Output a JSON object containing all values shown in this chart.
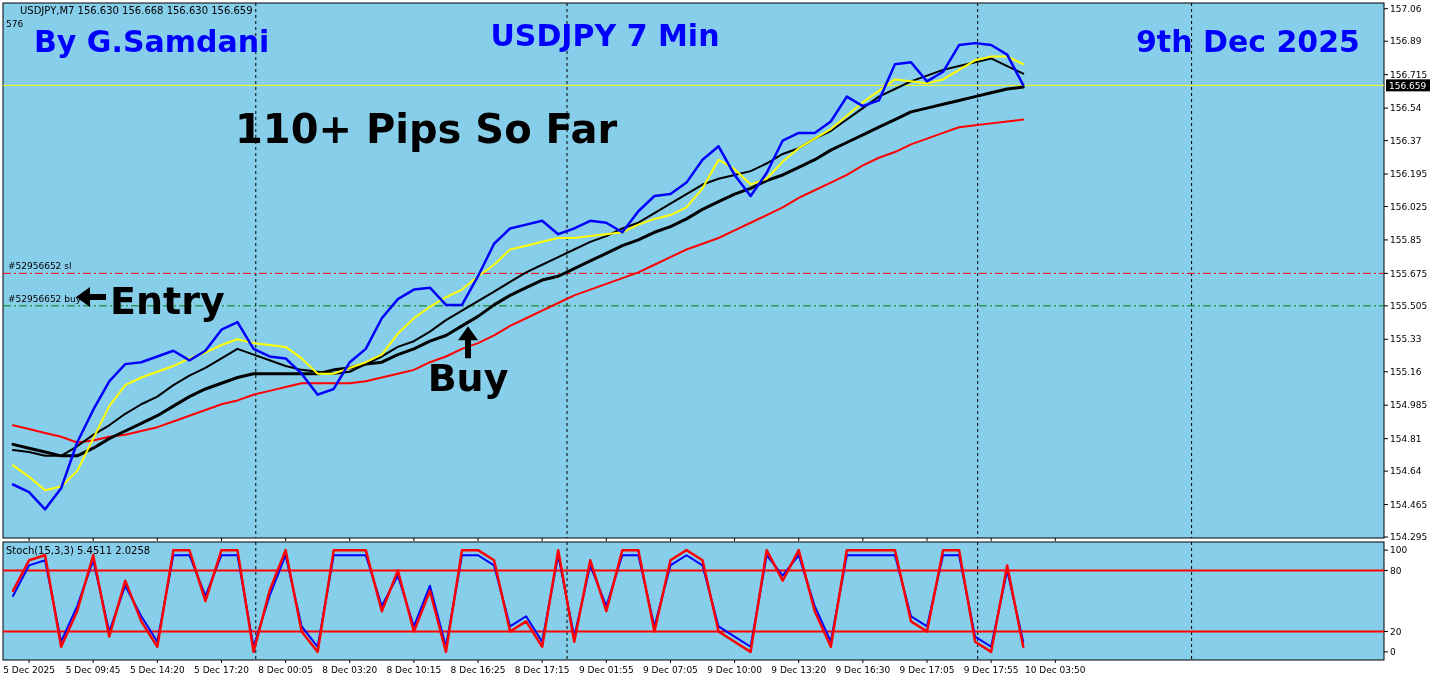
{
  "chart_data": [
    {
      "type": "line",
      "title": "USDJPY 7 Min",
      "annotations": [
        "USDJPY,M7  156.630 156.668 156.630 156.659",
        "576",
        "By G.Samdani",
        "9th Dec 2025",
        "110+ Pips So Far",
        {
          "text": "Entry"
        },
        {
          "text": "Buy",
          "x": "8 Dec 16:25",
          "y": 155.45
        }
      ],
      "categories": [
        null,
        "5 Dec 2025",
        null,
        null,
        null,
        "5 Dec 09:45",
        null,
        null,
        null,
        "5 Dec 14:20",
        null,
        null,
        null,
        "5 Dec 17:20",
        null,
        null,
        null,
        "8 Dec 00:05",
        null,
        null,
        null,
        "8 Dec 03:20",
        null,
        null,
        null,
        "8 Dec 10:15",
        null,
        null,
        null,
        "8 Dec 16:25",
        null,
        null,
        null,
        "8 Dec 17:15",
        null,
        null,
        null,
        "9 Dec 01:55",
        null,
        null,
        null,
        "9 Dec 07:05",
        null,
        null,
        null,
        "9 Dec 10:00",
        null,
        null,
        null,
        "9 Dec 13:20",
        null,
        null,
        null,
        "9 Dec 16:30",
        null,
        null,
        null,
        "9 Dec 17:05",
        null,
        null,
        null,
        "9 Dec 17:55",
        null,
        null,
        null,
        "10 Dec 03:50",
        null,
        null,
        null,
        null,
        null,
        null,
        null,
        null,
        null,
        null,
        null,
        null,
        null,
        null,
        null,
        null,
        null,
        null,
        null,
        null
      ],
      "series": [
        {
          "color": "#ff0000",
          "values": [
            154.88,
            154.86,
            154.84,
            154.82,
            154.79,
            154.8,
            154.82,
            154.83,
            154.85,
            154.87,
            154.9,
            154.93,
            154.96,
            154.99,
            155.01,
            155.04,
            155.06,
            155.08,
            155.1,
            155.1,
            155.1,
            155.1,
            155.11,
            155.13,
            155.15,
            155.17,
            155.21,
            155.24,
            155.28,
            155.31,
            155.35,
            155.4,
            155.44,
            155.48,
            155.52,
            155.56,
            155.59,
            155.62,
            155.65,
            155.68,
            155.72,
            155.76,
            155.8,
            155.83,
            155.86,
            155.9,
            155.94,
            155.98,
            156.02,
            156.07,
            156.11,
            156.15,
            156.19,
            156.24,
            156.28,
            156.31,
            156.35,
            156.38,
            156.41,
            156.44,
            156.45,
            156.46,
            156.47,
            156.48,
            null,
            null,
            null,
            null,
            null,
            null,
            null,
            null,
            null,
            null,
            null,
            null,
            null,
            null,
            null,
            null,
            null,
            null,
            null,
            null,
            null,
            null
          ]
        },
        {
          "color": "#000000",
          "values": [
            154.78,
            154.76,
            154.74,
            154.72,
            154.72,
            154.76,
            154.81,
            154.85,
            154.89,
            154.93,
            154.98,
            155.03,
            155.07,
            155.1,
            155.13,
            155.15,
            155.15,
            155.15,
            155.15,
            155.15,
            155.17,
            155.18,
            155.2,
            155.21,
            155.25,
            155.28,
            155.32,
            155.35,
            155.4,
            155.45,
            155.51,
            155.56,
            155.6,
            155.64,
            155.66,
            155.7,
            155.74,
            155.78,
            155.82,
            155.85,
            155.89,
            155.92,
            155.96,
            156.01,
            156.05,
            156.09,
            156.12,
            156.16,
            156.19,
            156.23,
            156.27,
            156.32,
            156.36,
            156.4,
            156.44,
            156.48,
            156.52,
            156.54,
            156.56,
            156.58,
            156.6,
            156.62,
            156.64,
            156.65,
            null,
            null,
            null,
            null,
            null,
            null,
            null,
            null,
            null,
            null,
            null,
            null,
            null,
            null,
            null,
            null,
            null,
            null,
            null,
            null,
            null,
            null
          ]
        },
        {
          "color": "#000000",
          "values": [
            154.75,
            154.74,
            154.72,
            154.72,
            154.77,
            154.83,
            154.88,
            154.94,
            154.99,
            155.03,
            155.09,
            155.14,
            155.18,
            155.23,
            155.28,
            155.25,
            155.22,
            155.19,
            155.17,
            155.16,
            155.15,
            155.16,
            155.2,
            155.24,
            155.29,
            155.32,
            155.37,
            155.43,
            155.48,
            155.53,
            155.58,
            155.63,
            155.68,
            155.72,
            155.76,
            155.8,
            155.84,
            155.87,
            155.91,
            155.94,
            155.99,
            156.04,
            156.09,
            156.14,
            156.17,
            156.19,
            156.21,
            156.25,
            156.3,
            156.33,
            156.38,
            156.42,
            156.48,
            156.54,
            156.6,
            156.64,
            156.68,
            156.71,
            156.74,
            156.76,
            156.78,
            156.8,
            156.76,
            156.72,
            null,
            null,
            null,
            null,
            null,
            null,
            null,
            null,
            null,
            null,
            null,
            null,
            null,
            null,
            null,
            null,
            null,
            null,
            null,
            null,
            null,
            null
          ]
        },
        {
          "color": "#ffff00",
          "values": [
            154.67,
            154.61,
            154.54,
            154.56,
            154.64,
            154.81,
            154.98,
            155.09,
            155.13,
            155.16,
            155.19,
            155.23,
            155.26,
            155.3,
            155.33,
            155.31,
            155.3,
            155.29,
            155.23,
            155.15,
            155.15,
            155.18,
            155.21,
            155.25,
            155.36,
            155.44,
            155.5,
            155.55,
            155.59,
            155.66,
            155.72,
            155.8,
            155.82,
            155.84,
            155.86,
            155.86,
            155.87,
            155.88,
            155.89,
            155.93,
            155.96,
            155.98,
            156.02,
            156.12,
            156.27,
            156.22,
            156.14,
            156.17,
            156.26,
            156.33,
            156.38,
            156.43,
            156.5,
            156.57,
            156.63,
            156.69,
            156.68,
            156.67,
            156.69,
            156.74,
            156.79,
            156.81,
            156.81,
            156.77,
            null,
            null,
            null,
            null,
            null,
            null,
            null,
            null,
            null,
            null,
            null,
            null,
            null,
            null,
            null,
            null,
            null,
            null,
            null,
            null,
            null,
            null
          ]
        },
        {
          "color": "#0000ff",
          "values": [
            154.57,
            154.53,
            154.44,
            154.55,
            154.79,
            154.96,
            155.11,
            155.2,
            155.21,
            155.24,
            155.27,
            155.22,
            155.27,
            155.38,
            155.42,
            155.28,
            155.24,
            155.23,
            155.15,
            155.04,
            155.07,
            155.21,
            155.28,
            155.44,
            155.54,
            155.59,
            155.6,
            155.51,
            155.51,
            155.66,
            155.83,
            155.91,
            155.93,
            155.95,
            155.88,
            155.91,
            155.95,
            155.94,
            155.89,
            156.0,
            156.08,
            156.09,
            156.15,
            156.27,
            156.34,
            156.19,
            156.08,
            156.2,
            156.37,
            156.41,
            156.41,
            156.47,
            156.6,
            156.55,
            156.58,
            156.77,
            156.78,
            156.68,
            156.73,
            156.87,
            156.88,
            156.87,
            156.82,
            156.66,
            null,
            null,
            null,
            null,
            null,
            null,
            null,
            null,
            null,
            null,
            null,
            null,
            null,
            null,
            null,
            null,
            null,
            null,
            null,
            null,
            null,
            null
          ]
        }
      ],
      "ylim": [
        154.29,
        157.09
      ],
      "yticks": [
        157.06,
        156.89,
        156.715,
        156.54,
        156.37,
        156.195,
        156.025,
        155.85,
        155.675,
        155.505,
        155.33,
        155.16,
        154.985,
        154.81,
        154.64,
        154.465,
        154.295
      ],
      "tick_labels": "y",
      "ref_lines": [
        {
          "axis": "y",
          "value": 156.659,
          "label": "156.659",
          "color": "#ffff00",
          "line_style": "solid"
        },
        {
          "axis": "y",
          "value": 155.675,
          "label": "#52956652 sl",
          "color": "#ff0000",
          "line_style": "dashed"
        },
        {
          "axis": "y",
          "value": 155.505,
          "label": "#52956652 buy",
          "color": "#008000",
          "line_style": "dashed"
        }
      ]
    },
    {
      "type": "line",
      "annotations": [
        "Stoch(15,3,3) 5.4511 2.0258"
      ],
      "categories": [
        null,
        "5 Dec 2025",
        null,
        null,
        null,
        "5 Dec 09:45",
        null,
        null,
        null,
        "5 Dec 14:20",
        null,
        null,
        null,
        "5 Dec 17:20",
        null,
        null,
        null,
        "8 Dec 00:05",
        null,
        null,
        null,
        "8 Dec 03:20",
        null,
        null,
        null,
        "8 Dec 10:15",
        null,
        null,
        null,
        "8 Dec 16:25",
        null,
        null,
        null,
        "8 Dec 17:15",
        null,
        null,
        null,
        "9 Dec 01:55",
        null,
        null,
        null,
        "9 Dec 07:05",
        null,
        null,
        null,
        "9 Dec 10:00",
        null,
        null,
        null,
        "9 Dec 13:20",
        null,
        null,
        null,
        "9 Dec 16:30",
        null,
        null,
        null,
        "9 Dec 17:05",
        null,
        null,
        null,
        "9 Dec 17:55",
        null,
        null,
        null,
        "10 Dec 03:50",
        null,
        null,
        null,
        null,
        null,
        null,
        null,
        null,
        null,
        null,
        null,
        null,
        null,
        null,
        null,
        null,
        null,
        null,
        null,
        null
      ],
      "series": [
        {
          "color": "#0000ff",
          "values": [
            55,
            85,
            90,
            10,
            45,
            90,
            20,
            65,
            35,
            10,
            95,
            95,
            55,
            95,
            95,
            5,
            55,
            95,
            25,
            5,
            95,
            95,
            95,
            45,
            75,
            25,
            65,
            5,
            95,
            95,
            85,
            25,
            35,
            10,
            95,
            15,
            85,
            45,
            95,
            95,
            25,
            85,
            95,
            85,
            25,
            15,
            5,
            95,
            75,
            95,
            45,
            10,
            95,
            95,
            95,
            95,
            35,
            25,
            95,
            95,
            15,
            5,
            80,
            10,
            null,
            null,
            null,
            null,
            null,
            null,
            null,
            null,
            null,
            null,
            null,
            null,
            null,
            null,
            null,
            null,
            null,
            null,
            null,
            null,
            null,
            null
          ]
        },
        {
          "color": "#ff0000",
          "values": [
            60,
            90,
            95,
            5,
            40,
            95,
            15,
            70,
            30,
            5,
            100,
            100,
            50,
            100,
            100,
            0,
            60,
            100,
            20,
            0,
            100,
            100,
            100,
            40,
            80,
            20,
            60,
            0,
            100,
            100,
            90,
            20,
            30,
            5,
            100,
            10,
            90,
            40,
            100,
            100,
            20,
            90,
            100,
            90,
            20,
            10,
            0,
            100,
            70,
            100,
            40,
            5,
            100,
            100,
            100,
            100,
            30,
            20,
            100,
            100,
            10,
            0,
            85,
            5,
            null,
            null,
            null,
            null,
            null,
            null,
            null,
            null,
            null,
            null,
            null,
            null,
            null,
            null,
            null,
            null,
            null,
            null,
            null,
            null,
            null,
            null
          ]
        }
      ],
      "ylim": [
        -8,
        108
      ],
      "yticks": [
        100,
        80,
        20,
        0
      ],
      "ref_lines": [
        {
          "axis": "y",
          "value": 80,
          "color": "#ff0000",
          "line_style": "solid"
        },
        {
          "axis": "y",
          "value": 20,
          "color": "#ff0000",
          "line_style": "solid"
        }
      ]
    }
  ]
}
